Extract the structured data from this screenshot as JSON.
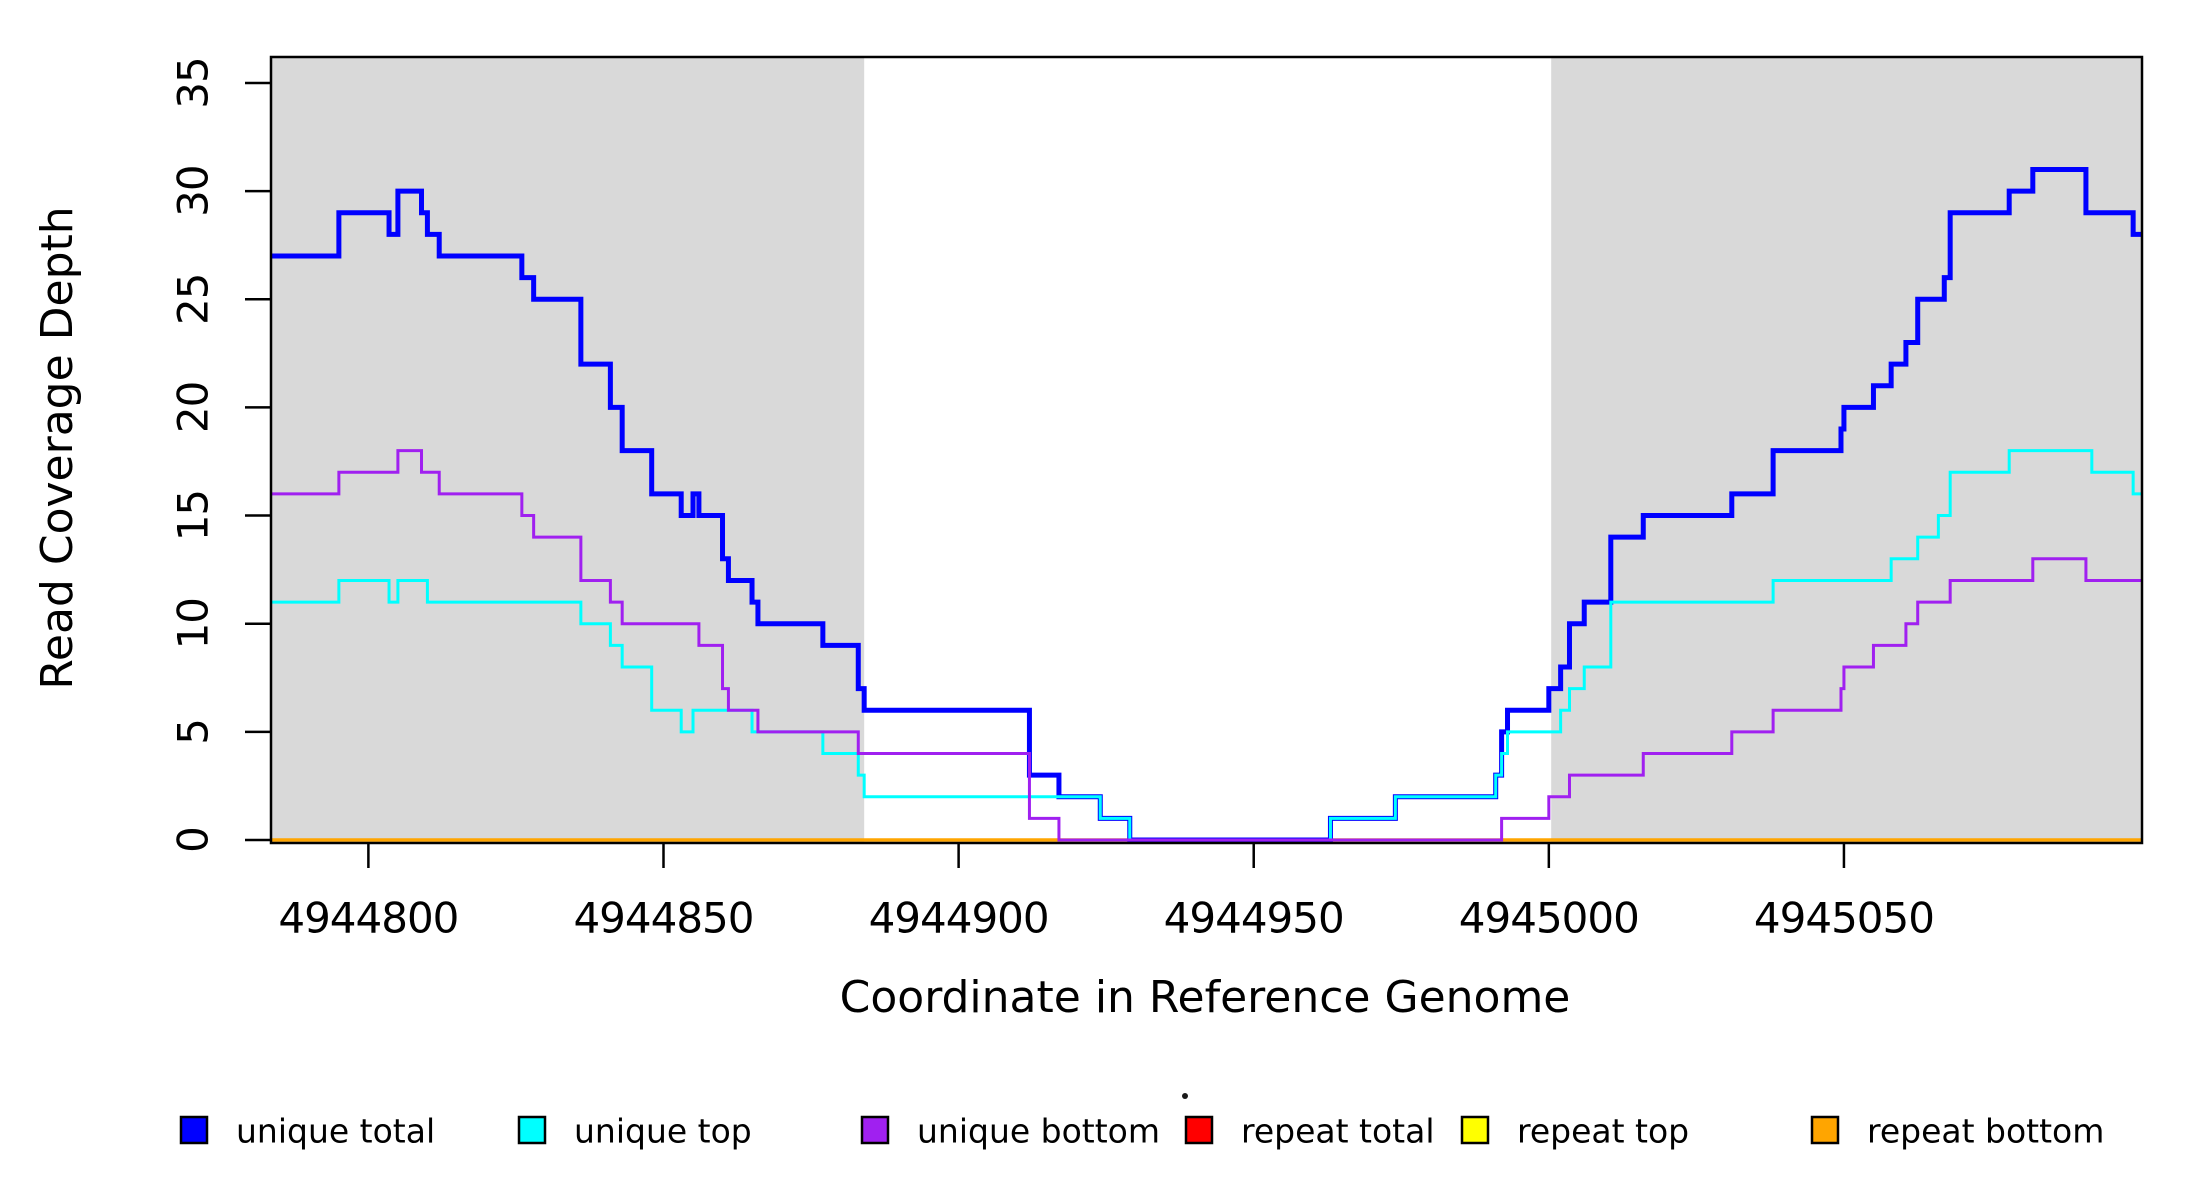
{
  "chart_data": {
    "type": "line",
    "subtype": "step-coverage",
    "title": "",
    "xlabel": "Coordinate in Reference Genome",
    "ylabel": "Read Coverage Depth",
    "xlim": [
      4944783.5,
      4945100.5
    ],
    "ylim": [
      0,
      36.2
    ],
    "grid": false,
    "legend_position": "bottom-horizontal",
    "x_ticks": [
      4944800,
      4944850,
      4944900,
      4944950,
      4945000,
      4945050
    ],
    "y_ticks": [
      0,
      5,
      10,
      15,
      20,
      25,
      30,
      35
    ],
    "colors": {
      "axis": "#000000",
      "background": "#ffffff",
      "shading": "#D9D9D9"
    },
    "shaded_regions": [
      {
        "name": "left-gray-region",
        "x0": 4944783.5,
        "x1": 4944884.0
      },
      {
        "name": "right-gray-region",
        "x0": 4945000.4,
        "x1": 4945100.5
      }
    ],
    "series": [
      {
        "name": "repeat total",
        "color": "#FF0000",
        "width": 3,
        "steps": [
          [
            4944783.5,
            0
          ]
        ]
      },
      {
        "name": "repeat top",
        "color": "#FFFF00",
        "width": 3,
        "steps": [
          [
            4944783.5,
            0
          ]
        ]
      },
      {
        "name": "repeat bottom",
        "color": "#FFA500",
        "width": 3.5,
        "steps": [
          [
            4944783.5,
            0
          ]
        ]
      },
      {
        "name": "unique total",
        "color": "#0000FF",
        "width": 5,
        "steps": [
          [
            4944783.5,
            27
          ],
          [
            4944795,
            29
          ],
          [
            4944803.5,
            28
          ],
          [
            4944805,
            30
          ],
          [
            4944809,
            29
          ],
          [
            4944810,
            28
          ],
          [
            4944812,
            27
          ],
          [
            4944826,
            26
          ],
          [
            4944828,
            25
          ],
          [
            4944836,
            22
          ],
          [
            4944841,
            20
          ],
          [
            4944843,
            18
          ],
          [
            4944848,
            16
          ],
          [
            4944853,
            15
          ],
          [
            4944855,
            16
          ],
          [
            4944856,
            15
          ],
          [
            4944860,
            13
          ],
          [
            4944861,
            12
          ],
          [
            4944865,
            11
          ],
          [
            4944866,
            10
          ],
          [
            4944877,
            9
          ],
          [
            4944883,
            7
          ],
          [
            4944884,
            6
          ],
          [
            4944912,
            3
          ],
          [
            4944917,
            2
          ],
          [
            4944924,
            1
          ],
          [
            4944929,
            0
          ],
          [
            4944963,
            1
          ],
          [
            4944974,
            2
          ],
          [
            4944991,
            3
          ],
          [
            4944992,
            5
          ],
          [
            4944993,
            6
          ],
          [
            4945000,
            7
          ],
          [
            4945002,
            8
          ],
          [
            4945003.5,
            10
          ],
          [
            4945006,
            11
          ],
          [
            4945010.5,
            14
          ],
          [
            4945016,
            15
          ],
          [
            4945031,
            16
          ],
          [
            4945038,
            18
          ],
          [
            4945049.5,
            19
          ],
          [
            4945050,
            20
          ],
          [
            4945055,
            21
          ],
          [
            4945058,
            22
          ],
          [
            4945060.5,
            23
          ],
          [
            4945062.5,
            25
          ],
          [
            4945067,
            26
          ],
          [
            4945068,
            29
          ],
          [
            4945078,
            30
          ],
          [
            4945082,
            31
          ],
          [
            4945091,
            29
          ],
          [
            4945099,
            28
          ]
        ]
      },
      {
        "name": "unique top",
        "color": "#00FFFF",
        "width": 3,
        "steps": [
          [
            4944783.5,
            11
          ],
          [
            4944795,
            12
          ],
          [
            4944803.5,
            11
          ],
          [
            4944805,
            12
          ],
          [
            4944810,
            11
          ],
          [
            4944836,
            10
          ],
          [
            4944841,
            9
          ],
          [
            4944843,
            8
          ],
          [
            4944848,
            6
          ],
          [
            4944853,
            5
          ],
          [
            4944855,
            6
          ],
          [
            4944865,
            5
          ],
          [
            4944877,
            4
          ],
          [
            4944883,
            3
          ],
          [
            4944884,
            2
          ],
          [
            4944924,
            1
          ],
          [
            4944929,
            0
          ],
          [
            4944963,
            1
          ],
          [
            4944974,
            2
          ],
          [
            4944991,
            3
          ],
          [
            4944992,
            4
          ],
          [
            4944993,
            5
          ],
          [
            4945002,
            6
          ],
          [
            4945003.5,
            7
          ],
          [
            4945006,
            8
          ],
          [
            4945010.5,
            11
          ],
          [
            4945038,
            12
          ],
          [
            4945058,
            13
          ],
          [
            4945062.5,
            14
          ],
          [
            4945066,
            15
          ],
          [
            4945068,
            17
          ],
          [
            4945078,
            18
          ],
          [
            4945092,
            17
          ],
          [
            4945099,
            16
          ]
        ]
      },
      {
        "name": "unique bottom",
        "color": "#A020F0",
        "width": 3,
        "steps": [
          [
            4944783.5,
            16
          ],
          [
            4944795,
            17
          ],
          [
            4944805,
            18
          ],
          [
            4944809,
            17
          ],
          [
            4944812,
            16
          ],
          [
            4944826,
            15
          ],
          [
            4944828,
            14
          ],
          [
            4944836,
            12
          ],
          [
            4944841,
            11
          ],
          [
            4944843,
            10
          ],
          [
            4944856,
            9
          ],
          [
            4944860,
            7
          ],
          [
            4944861,
            6
          ],
          [
            4944866,
            5
          ],
          [
            4944883,
            4
          ],
          [
            4944912,
            1
          ],
          [
            4944917,
            0
          ],
          [
            4944992,
            1
          ],
          [
            4945000,
            2
          ],
          [
            4945003.5,
            3
          ],
          [
            4945016,
            4
          ],
          [
            4945031,
            5
          ],
          [
            4945038,
            6
          ],
          [
            4945049.5,
            7
          ],
          [
            4945050,
            8
          ],
          [
            4945055,
            9
          ],
          [
            4945060.5,
            10
          ],
          [
            4945062.5,
            11
          ],
          [
            4945068,
            12
          ],
          [
            4945082,
            13
          ],
          [
            4945091,
            12
          ]
        ]
      }
    ],
    "legend": [
      {
        "label": "unique total",
        "color": "#0000FF"
      },
      {
        "label": "unique top",
        "color": "#00FFFF"
      },
      {
        "label": "unique bottom",
        "color": "#A020F0"
      },
      {
        "label": "repeat total",
        "color": "#FF0000"
      },
      {
        "label": "repeat top",
        "color": "#FFFF00"
      },
      {
        "label": "repeat bottom",
        "color": "#FFA500"
      }
    ]
  }
}
